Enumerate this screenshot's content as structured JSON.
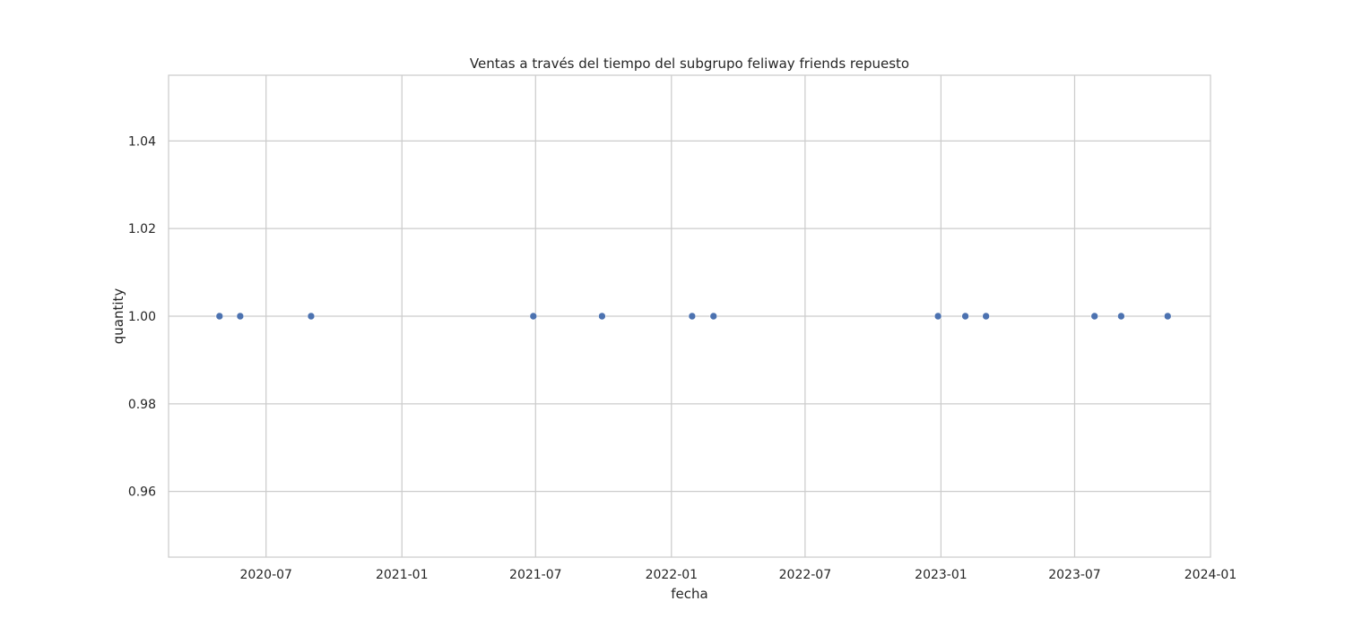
{
  "chart_data": {
    "type": "scatter",
    "title": "Ventas a través del tiempo del subgrupo feliway friends repuesto",
    "xlabel": "fecha",
    "ylabel": "quantity",
    "x_axis_kind": "date",
    "xlim": [
      "2020-02-20",
      "2024-01-01"
    ],
    "ylim": [
      0.945,
      1.055
    ],
    "x_ticks": [
      "2020-07-01",
      "2021-01-01",
      "2021-07-01",
      "2022-01-01",
      "2022-07-01",
      "2023-01-01",
      "2023-07-01",
      "2024-01-01"
    ],
    "x_tick_labels": [
      "2020-07",
      "2021-01",
      "2021-07",
      "2022-01",
      "2022-07",
      "2023-01",
      "2023-07",
      "2024-01"
    ],
    "y_ticks": [
      0.96,
      0.98,
      1.0,
      1.02,
      1.04
    ],
    "y_tick_labels": [
      "0.96",
      "0.98",
      "1.00",
      "1.02",
      "1.04"
    ],
    "grid": true,
    "marker_color": "#4c72b0",
    "grid_color": "#cccccc",
    "spine_color": "#cccccc",
    "points": [
      {
        "x": "2020-04-29",
        "y": 1
      },
      {
        "x": "2020-05-27",
        "y": 1
      },
      {
        "x": "2020-08-31",
        "y": 1
      },
      {
        "x": "2021-06-28",
        "y": 1
      },
      {
        "x": "2021-09-29",
        "y": 1
      },
      {
        "x": "2022-01-29",
        "y": 1
      },
      {
        "x": "2022-02-27",
        "y": 1
      },
      {
        "x": "2022-12-28",
        "y": 1
      },
      {
        "x": "2023-02-03",
        "y": 1
      },
      {
        "x": "2023-03-03",
        "y": 1
      },
      {
        "x": "2023-07-28",
        "y": 1
      },
      {
        "x": "2023-09-02",
        "y": 1
      },
      {
        "x": "2023-11-04",
        "y": 1
      }
    ]
  }
}
